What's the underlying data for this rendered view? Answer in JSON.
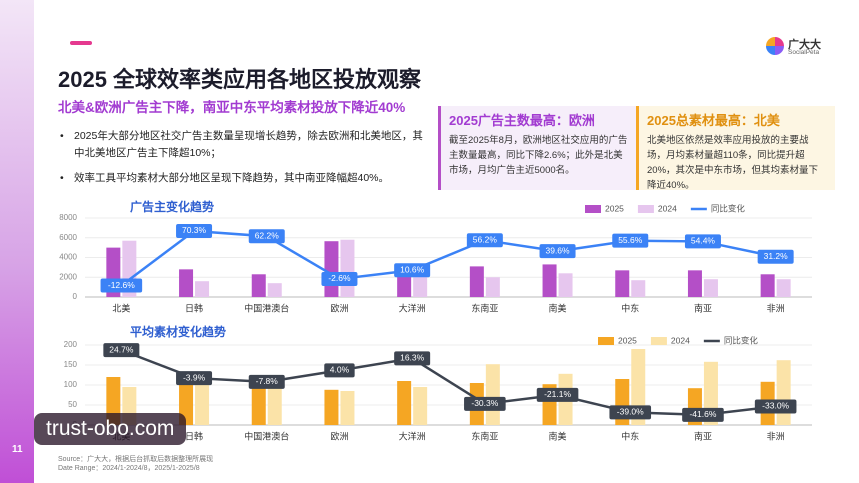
{
  "header": {
    "title": "2025 全球效率类应用各地区投放观察",
    "subtitle": "北美&欧洲广告主下降，南亚中东平均素材投放下降近40%",
    "bullets": [
      "2025年大部分地区社交广告主数量呈现增长趋势，除去欧洲和北美地区，其中北美地区广告主下降超10%；",
      "效率工具平均素材大部分地区呈现下降趋势，其中南亚降幅超40%。"
    ],
    "logo": "广大大",
    "logo_sub": "SocialPeta",
    "page": "11"
  },
  "cards": [
    {
      "title": "2025广告主数最高：欧洲",
      "text": "截至2025年8月，欧洲地区社交应用的广告主数量最高，同比下降2.6%；此外是北美市场，月均广告主近5000名。"
    },
    {
      "title": "2025总素材最高：北美",
      "text": "北美地区依然是效率应用投放的主要战场，月均素材量超110条，同比提升超20%，其次是中东市场，但其均素材量下降近40%。"
    }
  ],
  "chart_data": [
    {
      "type": "bar",
      "title": "广告主变化趋势",
      "categories": [
        "北美",
        "日韩",
        "中国港澳台",
        "欧洲",
        "大洋洲",
        "东南亚",
        "南美",
        "中东",
        "南亚",
        "非洲"
      ],
      "series": [
        {
          "name": "2025",
          "color": "#b44fc7",
          "values": [
            5000,
            2800,
            2300,
            5650,
            2600,
            3100,
            3300,
            2700,
            2700,
            2300
          ]
        },
        {
          "name": "2024",
          "color": "#e6c6ee",
          "values": [
            5700,
            1600,
            1400,
            5800,
            2300,
            2000,
            2400,
            1700,
            1800,
            1800
          ]
        },
        {
          "name": "同比变化",
          "type": "line",
          "axis": "y2",
          "color": "#3b82f6",
          "values": [
            -12.6,
            70.3,
            62.2,
            -2.6,
            10.6,
            56.2,
            39.6,
            55.6,
            54.4,
            31.2
          ],
          "value_labels": [
            "-12.6%",
            "70.3%",
            "62.2%",
            "-2.6%",
            "10.6%",
            "56.2%",
            "39.6%",
            "55.6%",
            "54.4%",
            "31.2%"
          ]
        }
      ],
      "ylim": [
        0,
        8000
      ],
      "yticks": [
        0,
        2000,
        4000,
        6000,
        8000
      ],
      "y2lim": [
        -30,
        90
      ]
    },
    {
      "type": "bar",
      "title": "平均素材变化趋势",
      "categories": [
        "北美",
        "日韩",
        "中国港澳台",
        "欧洲",
        "大洋洲",
        "东南亚",
        "南美",
        "中东",
        "南亚",
        "非洲"
      ],
      "series": [
        {
          "name": "2025",
          "color": "#f5a623",
          "values": [
            120,
            108,
            100,
            88,
            110,
            105,
            102,
            115,
            92,
            108
          ]
        },
        {
          "name": "2024",
          "color": "#fbe3a8",
          "values": [
            95,
            112,
            108,
            85,
            95,
            152,
            128,
            190,
            158,
            162
          ]
        },
        {
          "name": "同比变化",
          "type": "line",
          "axis": "y2",
          "color": "#3d4450",
          "values": [
            24.7,
            -3.9,
            -7.8,
            4.0,
            16.3,
            -30.3,
            -21.1,
            -39.0,
            -41.6,
            -33.0
          ],
          "value_labels": [
            "24.7%",
            "-3.9%",
            "-7.8%",
            "4.0%",
            "16.3%",
            "-30.3%",
            "-21.1%",
            "-39.0%",
            "-41.6%",
            "-33.0%"
          ]
        }
      ],
      "ylim": [
        0,
        200
      ],
      "yticks": [
        0,
        50,
        100,
        150,
        200
      ],
      "y2lim": [
        -52,
        30
      ]
    }
  ],
  "footer": {
    "source": "Source：广大大，根据后台抓取后数据整理所展现",
    "range": "Date Range：2024/1-2024/8，2025/1-2025/8"
  },
  "watermark": "trust-obo.com"
}
